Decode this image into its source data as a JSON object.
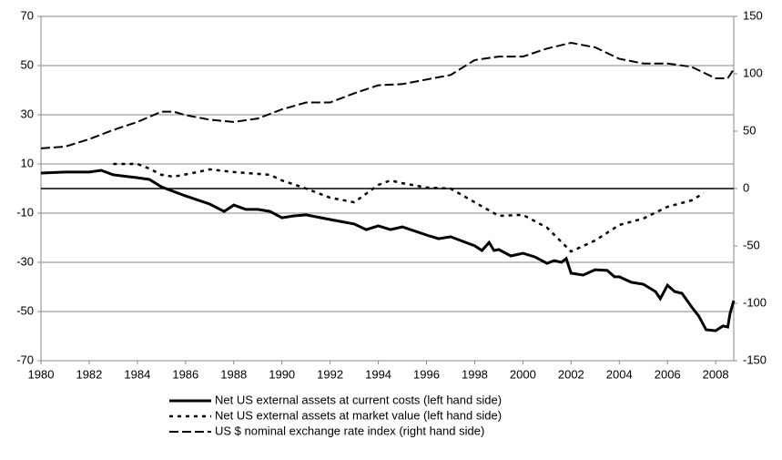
{
  "chart_data": {
    "type": "line",
    "xlim": [
      1980,
      2008.75
    ],
    "xticks": [
      1980,
      1982,
      1984,
      1986,
      1988,
      1990,
      1992,
      1994,
      1996,
      1998,
      2000,
      2002,
      2004,
      2006,
      2008
    ],
    "ylim": [
      -70,
      70
    ],
    "yticks": [
      70,
      50,
      30,
      10,
      -10,
      -30,
      -50,
      -70
    ],
    "y2lim": [
      -150,
      150
    ],
    "y2ticks": [
      150,
      100,
      50,
      0,
      -50,
      -100,
      -150
    ],
    "grid": true,
    "legend": "bottom",
    "series": [
      {
        "name": "Net US external assets at current costs (left hand side)",
        "color": "#000000",
        "line_style": "solid",
        "x": [
          1980,
          1981,
          1982,
          1982.5,
          1983,
          1984,
          1984.5,
          1985,
          1986,
          1987,
          1987.6,
          1988,
          1988.5,
          1989,
          1989.5,
          1990,
          1990.5,
          1991,
          1992,
          1993,
          1993.5,
          1994,
          1994.5,
          1995,
          1996,
          1996.5,
          1997,
          1998,
          1998.3,
          1998.6,
          1998.8,
          1999,
          1999.5,
          2000,
          2000.5,
          2001,
          2001.3,
          2001.6,
          2001.8,
          2002,
          2002.5,
          2003,
          2003.5,
          2003.8,
          2004,
          2004.5,
          2005,
          2005.5,
          2005.7,
          2006,
          2006.3,
          2006.6,
          2007,
          2007.3,
          2007.6,
          2008,
          2008.3,
          2008.5,
          2008.6,
          2008.75
        ],
        "values": [
          6.3,
          6.7,
          6.7,
          7.4,
          5.6,
          4.4,
          3.7,
          0.7,
          -3,
          -6.3,
          -9.3,
          -6.7,
          -8.5,
          -8.5,
          -9.3,
          -11.9,
          -11.1,
          -10.7,
          -12.6,
          -14.4,
          -16.7,
          -15.2,
          -16.7,
          -15.6,
          -18.9,
          -20.4,
          -19.6,
          -23.3,
          -25.2,
          -21.9,
          -25.2,
          -24.8,
          -27.4,
          -26.3,
          -27.8,
          -30.4,
          -29.3,
          -30,
          -28.5,
          -34.4,
          -35.2,
          -33,
          -33.3,
          -35.9,
          -35.9,
          -38.1,
          -38.9,
          -41.9,
          -44.8,
          -39.3,
          -41.9,
          -42.6,
          -48.1,
          -51.9,
          -57.4,
          -57.8,
          -55.9,
          -56.3,
          -50.7,
          -45.6
        ]
      },
      {
        "name": "Net US external assets at market value (left hand side)",
        "color": "#000000",
        "line_style": "dotted",
        "x": [
          1983,
          1984,
          1984.5,
          1985,
          1985.5,
          1986.5,
          1987,
          1988,
          1989.5,
          1990,
          1991,
          1992,
          1993,
          1994,
          1994.5,
          1995,
          1996,
          1997,
          1998,
          1999,
          2000,
          2001,
          2002,
          2003,
          2004,
          2005,
          2006,
          2007,
          2007.5
        ],
        "values": [
          10,
          10,
          8.1,
          5.6,
          4.8,
          6.7,
          7.8,
          6.7,
          5.6,
          3.3,
          0,
          -3.7,
          -5.6,
          1.5,
          3.3,
          2.2,
          0.4,
          0,
          -5.6,
          -11.1,
          -10.7,
          -15.9,
          -25.6,
          -21.1,
          -14.8,
          -12.2,
          -7.4,
          -4.8,
          -1.9
        ]
      },
      {
        "name": "US $ nominal exchange rate index (right hand side)",
        "color": "#000000",
        "line_style": "dashed",
        "axis": "y2",
        "x": [
          1980,
          1981,
          1982,
          1983,
          1984,
          1985,
          1985.5,
          1986,
          1987,
          1988,
          1989,
          1990,
          1991,
          1992,
          1993,
          1994,
          1995,
          1996,
          1997,
          1998,
          1999,
          2000,
          2001,
          2002,
          2003,
          2004,
          2005,
          2006,
          2007,
          2008,
          2008.5,
          2008.75
        ],
        "values": [
          35,
          36.5,
          43,
          51,
          58,
          67,
          67,
          64,
          60,
          58,
          61,
          69,
          75,
          75,
          83,
          90,
          91,
          95,
          99,
          112,
          115,
          115,
          122,
          127,
          123,
          113,
          109,
          109,
          106,
          96,
          96,
          104
        ]
      }
    ]
  }
}
